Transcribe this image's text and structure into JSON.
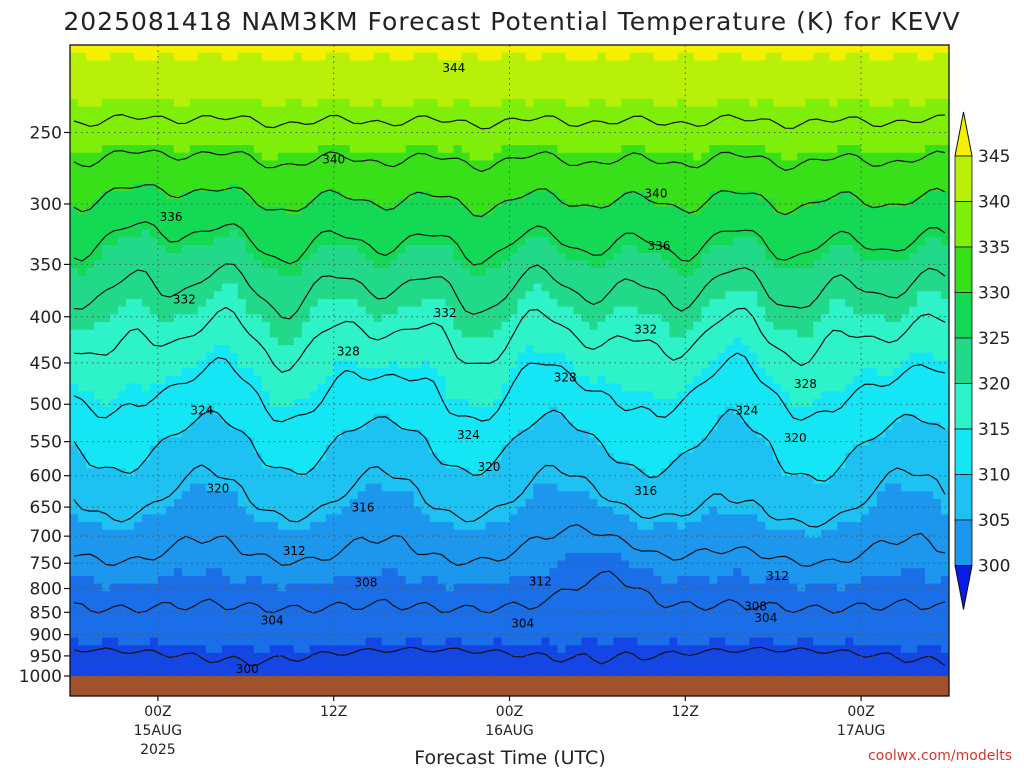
{
  "title": "2025081418 NAM3KM Forecast Potential Temperature (K) for KEVV",
  "credit": "coolwx.com/modelts",
  "colors": {
    "ground": "#a0522d",
    "grid": "#555555",
    "fills": [
      "#0a1de6",
      "#1446e6",
      "#1a6fe8",
      "#1d96ee",
      "#1ec2f2",
      "#14e6f5",
      "#2ef2c8",
      "#22d98a",
      "#14d955",
      "#38e01a",
      "#7fef0a",
      "#b8f00a",
      "#f5f000"
    ]
  },
  "chart_data": {
    "type": "contour",
    "title": "2025081418 NAM3KM Forecast Potential Temperature (K) for KEVV",
    "xlabel": "Forecast Time (UTC)",
    "ylabel": "",
    "x_ticks": [
      {
        "label": "00Z",
        "date": "15AUG",
        "year": "2025",
        "hours": 6
      },
      {
        "label": "12Z",
        "date": "",
        "year": "",
        "hours": 18
      },
      {
        "label": "00Z",
        "date": "16AUG",
        "year": "",
        "hours": 30
      },
      {
        "label": "12Z",
        "date": "",
        "year": "",
        "hours": 42
      },
      {
        "label": "00Z",
        "date": "17AUG",
        "year": "",
        "hours": 54
      }
    ],
    "xlim_hours": [
      0,
      60
    ],
    "y_ticks": [
      250,
      300,
      350,
      400,
      450,
      500,
      550,
      600,
      650,
      700,
      750,
      800,
      850,
      900,
      950,
      1000
    ],
    "ylim": [
      200,
      1000
    ],
    "y_scale": "log",
    "grid": true,
    "colorbar": {
      "labels": [
        300,
        305,
        310,
        315,
        320,
        325,
        330,
        335,
        340,
        345
      ],
      "extend": "both"
    },
    "contour_interval": 4,
    "contour_labels": [
      {
        "value": 344,
        "hours": 26.2,
        "p": 212
      },
      {
        "value": 340,
        "hours": 18.0,
        "p": 268
      },
      {
        "value": 340,
        "hours": 40.0,
        "p": 292
      },
      {
        "value": 336,
        "hours": 6.9,
        "p": 310
      },
      {
        "value": 336,
        "hours": 40.2,
        "p": 334
      },
      {
        "value": 332,
        "hours": 7.8,
        "p": 383
      },
      {
        "value": 332,
        "hours": 25.6,
        "p": 396
      },
      {
        "value": 332,
        "hours": 39.3,
        "p": 413
      },
      {
        "value": 328,
        "hours": 19.0,
        "p": 437
      },
      {
        "value": 328,
        "hours": 33.8,
        "p": 467
      },
      {
        "value": 328,
        "hours": 50.2,
        "p": 475
      },
      {
        "value": 324,
        "hours": 9.0,
        "p": 508
      },
      {
        "value": 324,
        "hours": 27.2,
        "p": 541
      },
      {
        "value": 324,
        "hours": 46.2,
        "p": 508
      },
      {
        "value": 320,
        "hours": 28.6,
        "p": 587
      },
      {
        "value": 320,
        "hours": 49.5,
        "p": 545
      },
      {
        "value": 320,
        "hours": 10.1,
        "p": 620
      },
      {
        "value": 316,
        "hours": 20.0,
        "p": 651
      },
      {
        "value": 316,
        "hours": 39.3,
        "p": 624
      },
      {
        "value": 312,
        "hours": 15.3,
        "p": 727
      },
      {
        "value": 312,
        "hours": 32.1,
        "p": 786
      },
      {
        "value": 312,
        "hours": 48.3,
        "p": 775
      },
      {
        "value": 308,
        "hours": 20.2,
        "p": 788
      },
      {
        "value": 308,
        "hours": 46.8,
        "p": 838
      },
      {
        "value": 304,
        "hours": 13.8,
        "p": 868
      },
      {
        "value": 304,
        "hours": 30.9,
        "p": 875
      },
      {
        "value": 304,
        "hours": 47.5,
        "p": 862
      },
      {
        "value": 300,
        "hours": 12.1,
        "p": 982
      }
    ]
  }
}
